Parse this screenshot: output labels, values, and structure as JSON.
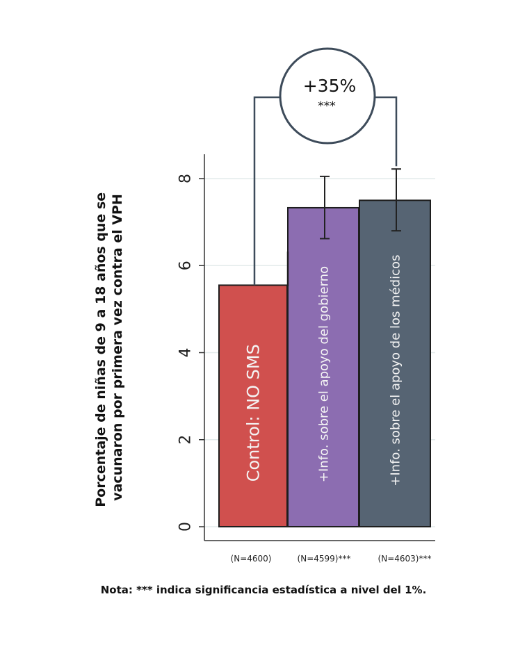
{
  "chart_data": {
    "type": "bar",
    "categories": [
      "Control: NO SMS",
      "+Info. sobre el apoyo del gobierno",
      "+Info. sobre el apoyo de los médicos"
    ],
    "values": [
      5.55,
      7.33,
      7.5
    ],
    "error_bars": [
      null,
      [
        6.62,
        8.05
      ],
      [
        6.8,
        8.22
      ]
    ],
    "sample_sizes": [
      "(N=4600)",
      "(N=4599)***",
      "(N=4603)***"
    ],
    "colors": [
      "#d0504e",
      "#8c6db1",
      "#566473"
    ],
    "ylabel_lines": [
      "Porcentaje de niñas de 9 a 18 años que se",
      "vacunaron por primera vez contra el VPH"
    ],
    "yticks": [
      "0",
      "2",
      "4",
      "6",
      "8"
    ],
    "ylim": [
      0,
      8.7
    ],
    "grid": true,
    "annotation": {
      "value": "+35%",
      "significance": "***"
    }
  },
  "note": "Nota: *** indica significancia estadística a nivel del 1%."
}
